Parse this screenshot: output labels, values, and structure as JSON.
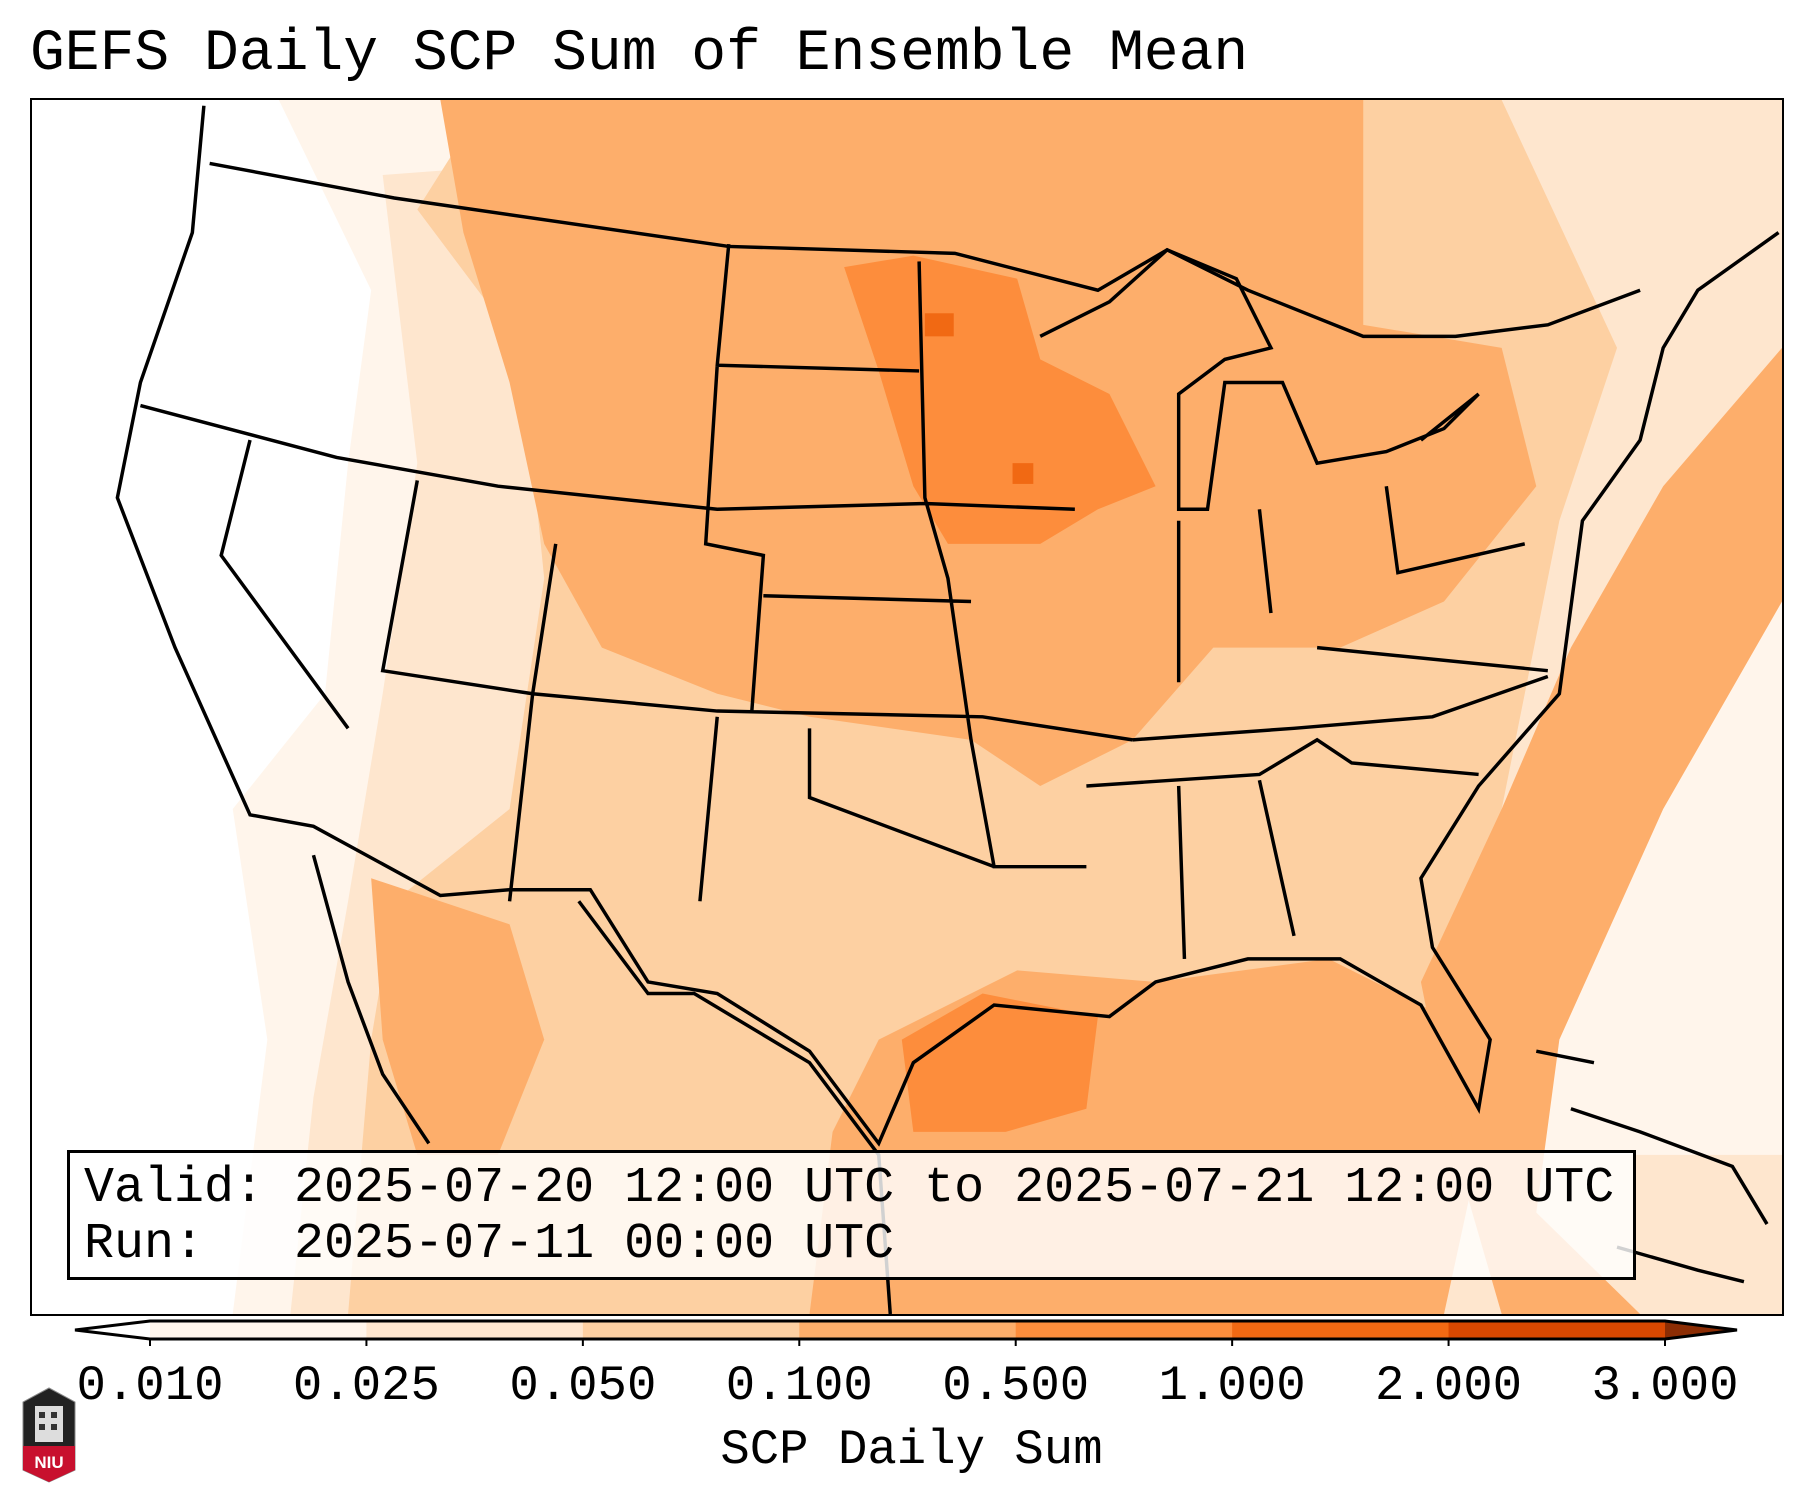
{
  "title": "GEFS Daily SCP Sum of Ensemble Mean",
  "info": {
    "valid_line": "Valid: 2025-07-20 12:00 UTC to 2025-07-21 12:00 UTC",
    "run_line": "Run:   2025-07-11 00:00 UTC"
  },
  "logo": {
    "text": "NIU",
    "color": "#c8102e"
  },
  "chart_data": {
    "type": "heatmap",
    "title": "GEFS Daily SCP Sum of Ensemble Mean",
    "region": "Contiguous United States, southern Canada, northern Mexico, Gulf of Mexico, western Atlantic",
    "colorbar": {
      "label": "SCP Daily Sum",
      "ticks": [
        "0.010",
        "0.025",
        "0.050",
        "0.100",
        "0.500",
        "1.000",
        "2.000",
        "3.000"
      ],
      "levels": [
        0.01,
        0.025,
        0.05,
        0.1,
        0.5,
        1.0,
        2.0,
        3.0
      ],
      "colors": [
        "#fff5eb",
        "#fee6ce",
        "#fdd0a2",
        "#fdae6b",
        "#fd8d3c",
        "#f16913",
        "#d94801"
      ],
      "under_color": "#ffffff",
      "over_color": "#8c2d04",
      "extend": "both"
    },
    "highlights": [
      {
        "area": "Minnesota / Iowa / eastern Dakotas",
        "range": "0.5-1.0, spots 1.0-2.0"
      },
      {
        "area": "Northern Plains, Midwest, Ohio Valley, Northeast",
        "range": "0.1-0.5"
      },
      {
        "area": "Northwestern Gulf of Mexico / Texas coast",
        "range": "0.5-1.0"
      },
      {
        "area": "Western Atlantic offshore band",
        "range": "0.1-0.5"
      },
      {
        "area": "West Coast / Great Basin",
        "range": "below 0.010"
      },
      {
        "area": "Southwest, Texas, Southeast",
        "range": "0.010-0.100"
      }
    ]
  }
}
